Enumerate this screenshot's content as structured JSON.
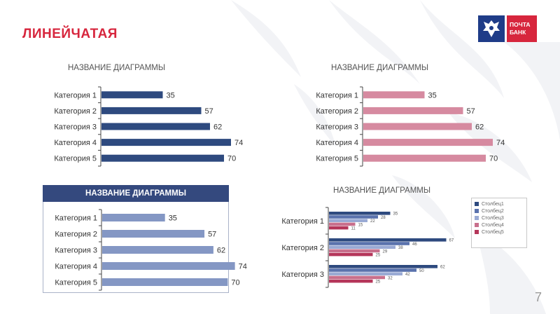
{
  "slide": {
    "title": "ЛИНЕЙЧАТАЯ",
    "page_number": "7",
    "logo_text": "ПОЧТА БАНК",
    "logo_line1": "ПОЧТА",
    "logo_line2": "БАНК"
  },
  "colors": {
    "brand_red": "#d7263d",
    "navy": "#2e4a7f",
    "pink": "#d68aa0",
    "periwinkle": "#8497c4",
    "header_navy": "#34497e",
    "series5": [
      "#2e4a7f",
      "#5a72ad",
      "#9aaad4",
      "#c86f8c",
      "#b5365a"
    ]
  },
  "chart_data": [
    {
      "type": "bar",
      "orientation": "horizontal",
      "title": "НАЗВАНИЕ ДИАГРАММЫ",
      "categories": [
        "Категория 1",
        "Категория 2",
        "Категория 3",
        "Категория 4",
        "Категория 5"
      ],
      "values": [
        35,
        57,
        62,
        74,
        70
      ],
      "xlim": [
        0,
        80
      ],
      "grid": false,
      "color": "#2e4a7f"
    },
    {
      "type": "bar",
      "orientation": "horizontal",
      "title": "НАЗВАНИЕ ДИАГРАММЫ",
      "categories": [
        "Категория 1",
        "Категория 2",
        "Категория 3",
        "Категория 4",
        "Категория 5"
      ],
      "values": [
        35,
        57,
        62,
        74,
        70
      ],
      "xlim": [
        0,
        80
      ],
      "grid": false,
      "color": "#d68aa0"
    },
    {
      "type": "bar",
      "orientation": "horizontal",
      "title": "НАЗВАНИЕ ДИАГРАММЫ",
      "categories": [
        "Категория 1",
        "Категория 2",
        "Категория 3",
        "Категория 4",
        "Категория 5"
      ],
      "values": [
        35,
        57,
        62,
        74,
        70
      ],
      "xlim": [
        0,
        80
      ],
      "grid": false,
      "color": "#8497c4"
    },
    {
      "type": "bar",
      "orientation": "horizontal",
      "title": "НАЗВАНИЕ ДИАГРАММЫ",
      "categories": [
        "Категория 1",
        "Категория 2",
        "Категория 3"
      ],
      "series": [
        {
          "name": "Столбец1",
          "values": [
            35,
            67,
            62
          ]
        },
        {
          "name": "Столбец2",
          "values": [
            28,
            46,
            50
          ]
        },
        {
          "name": "Столбец3",
          "values": [
            22,
            38,
            42
          ]
        },
        {
          "name": "Столбец4",
          "values": [
            15,
            29,
            32
          ]
        },
        {
          "name": "Столбец5",
          "values": [
            11,
            25,
            25
          ]
        }
      ],
      "xlim": [
        0,
        80
      ],
      "grid": false,
      "legend": "right"
    }
  ]
}
